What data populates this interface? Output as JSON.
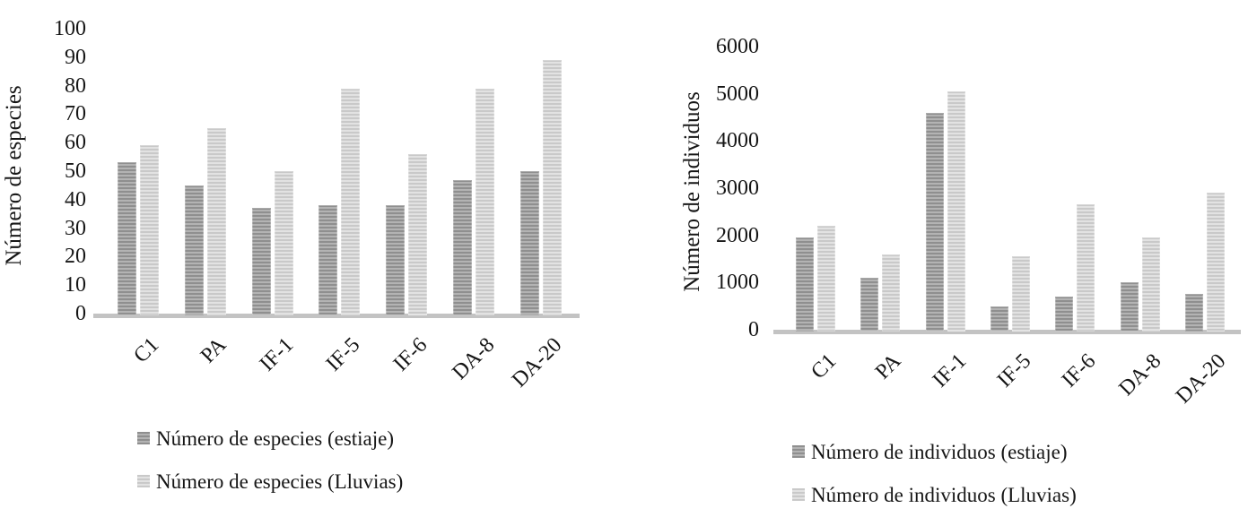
{
  "figure": {
    "background": "#ffffff",
    "text_color": "#161616",
    "axis_line_color": "#c3c3c3",
    "series_styles": [
      {
        "key": "estiaje",
        "stripe_dark": "#8f8f8f",
        "stripe_light": "#b3b3b3"
      },
      {
        "key": "lluvias",
        "stripe_dark": "#c9c9c9",
        "stripe_light": "#e2e2e2"
      }
    ]
  },
  "chart_data": [
    {
      "type": "bar",
      "title": "",
      "xlabel": "",
      "ylabel": "Número de especies",
      "categories": [
        "C1",
        "PA",
        "IF-1",
        "IF-5",
        "IF-6",
        "DA-8",
        "DA-20"
      ],
      "series": [
        {
          "name": "Número de especies (estiaje)",
          "values": [
            53,
            45,
            37,
            38,
            38,
            47,
            50
          ]
        },
        {
          "name": "Número de especies (Lluvias)",
          "values": [
            59,
            65,
            50,
            79,
            56,
            79,
            89
          ]
        }
      ],
      "ylim": [
        0,
        100
      ],
      "ytick_step": 10,
      "yticks": [
        0,
        10,
        20,
        30,
        40,
        50,
        60,
        70,
        80,
        90,
        100
      ],
      "grid": false,
      "legend_position": "bottom-left"
    },
    {
      "type": "bar",
      "title": "",
      "xlabel": "",
      "ylabel": "Número de individuos",
      "categories": [
        "C1",
        "PA",
        "IF-1",
        "IF-5",
        "IF-6",
        "DA-8",
        "DA-20"
      ],
      "series": [
        {
          "name": "Número de individuos (estiaje)",
          "values": [
            1950,
            1100,
            4600,
            500,
            700,
            1000,
            750
          ]
        },
        {
          "name": "Número de individuos (Lluvias)",
          "values": [
            2200,
            1600,
            5050,
            1550,
            2650,
            1950,
            2900
          ]
        }
      ],
      "ylim": [
        0,
        6000
      ],
      "ytick_step": 1000,
      "yticks": [
        0,
        1000,
        2000,
        3000,
        4000,
        5000,
        6000
      ],
      "grid": false,
      "legend_position": "bottom-left"
    }
  ]
}
